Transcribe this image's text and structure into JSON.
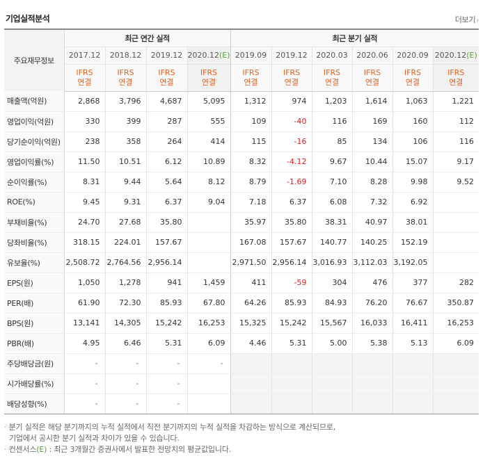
{
  "header": {
    "title": "기업실적분석",
    "more": "더보기"
  },
  "table": {
    "corner": "주요재무정보",
    "group_annual": "최근 연간 실적",
    "group_quarter": "최근 분기 실적",
    "dates": [
      "2017.12",
      "2018.12",
      "2019.12",
      "2020.12",
      "2019.09",
      "2019.12",
      "2020.03",
      "2020.06",
      "2020.09",
      "2020.12"
    ],
    "est_mark": "(E)",
    "ifrs_top": "IFRS",
    "ifrs_bottom": "연결",
    "rows": [
      {
        "label": "매출액(억원)",
        "values": [
          "2,868",
          "3,796",
          "4,687",
          "5,095",
          "1,312",
          "974",
          "1,203",
          "1,614",
          "1,063",
          "1,221"
        ]
      },
      {
        "label": "영업이익(억원)",
        "values": [
          "330",
          "399",
          "287",
          "555",
          "109",
          "-40",
          "116",
          "169",
          "160",
          "112"
        ]
      },
      {
        "label": "당기순이익(억원)",
        "values": [
          "238",
          "358",
          "264",
          "414",
          "115",
          "-16",
          "85",
          "134",
          "106",
          "116"
        ]
      },
      {
        "label": "영업이익률(%)",
        "values": [
          "11.50",
          "10.51",
          "6.12",
          "10.89",
          "8.32",
          "-4.12",
          "9.67",
          "10.44",
          "15.07",
          "9.17"
        ]
      },
      {
        "label": "순이익률(%)",
        "values": [
          "8.31",
          "9.44",
          "5.64",
          "8.12",
          "8.79",
          "-1.69",
          "7.10",
          "8.28",
          "9.98",
          "9.52"
        ]
      },
      {
        "label": "ROE(%)",
        "values": [
          "9.45",
          "9.31",
          "6.37",
          "9.04",
          "7.18",
          "6.37",
          "6.08",
          "7.32",
          "6.92",
          ""
        ]
      },
      {
        "label": "부채비율(%)",
        "values": [
          "24.70",
          "27.68",
          "35.80",
          "",
          "35.97",
          "35.80",
          "38.31",
          "40.97",
          "38.01",
          ""
        ]
      },
      {
        "label": "당좌비율(%)",
        "values": [
          "318.15",
          "224.01",
          "157.67",
          "",
          "167.08",
          "157.67",
          "140.77",
          "140.25",
          "152.19",
          ""
        ]
      },
      {
        "label": "유보율(%)",
        "values": [
          "2,508.72",
          "2,764.56",
          "2,956.14",
          "",
          "2,971.50",
          "2,956.14",
          "3,016.93",
          "3,112.03",
          "3,192.05",
          ""
        ]
      },
      {
        "label": "EPS(원)",
        "values": [
          "1,050",
          "1,278",
          "941",
          "1,459",
          "411",
          "-59",
          "304",
          "476",
          "377",
          "282"
        ]
      },
      {
        "label": "PER(배)",
        "values": [
          "61.90",
          "72.30",
          "85.93",
          "67.80",
          "64.26",
          "85.93",
          "84.93",
          "76.20",
          "76.67",
          "350.87"
        ]
      },
      {
        "label": "BPS(원)",
        "values": [
          "13,141",
          "14,305",
          "15,242",
          "16,253",
          "15,325",
          "15,242",
          "15,567",
          "16,033",
          "16,411",
          "16,253"
        ]
      },
      {
        "label": "PBR(배)",
        "values": [
          "4.95",
          "6.46",
          "5.31",
          "6.09",
          "4.46",
          "5.31",
          "5.00",
          "5.38",
          "5.13",
          "6.09"
        ]
      },
      {
        "label": "주당배당금(원)",
        "values": [
          "-",
          "-",
          "-",
          "-",
          "",
          "",
          "",
          "",
          "",
          ""
        ]
      },
      {
        "label": "시가배당률(%)",
        "values": [
          "-",
          "-",
          "-",
          "",
          "",
          "",
          "",
          "",
          "",
          ""
        ]
      },
      {
        "label": "배당성향(%)",
        "values": [
          "-",
          "-",
          "-",
          "",
          "",
          "",
          "",
          "",
          "",
          ""
        ]
      }
    ]
  },
  "notes": {
    "line1": "분기 실적은 해당 분기까지의 누적 실적에서 직전 분기까지의 누적 실적을 차감하는 방식으로 계산되므로,",
    "line2": "기업에서 공시한 분기 실적과 차이가 있을 수 있습니다.",
    "line3_pre": "컨센서스",
    "line3_mark": "(E)",
    "line3_post": " : 최근 3개월간 증권사에서 발표한 전망치의 평균값입니다."
  },
  "colors": {
    "negative": "#e02020",
    "ifrs": "#e8601c",
    "estimate_mark": "#5aa13a"
  },
  "icons": {
    "more_chevron": "chevron-right-icon"
  }
}
